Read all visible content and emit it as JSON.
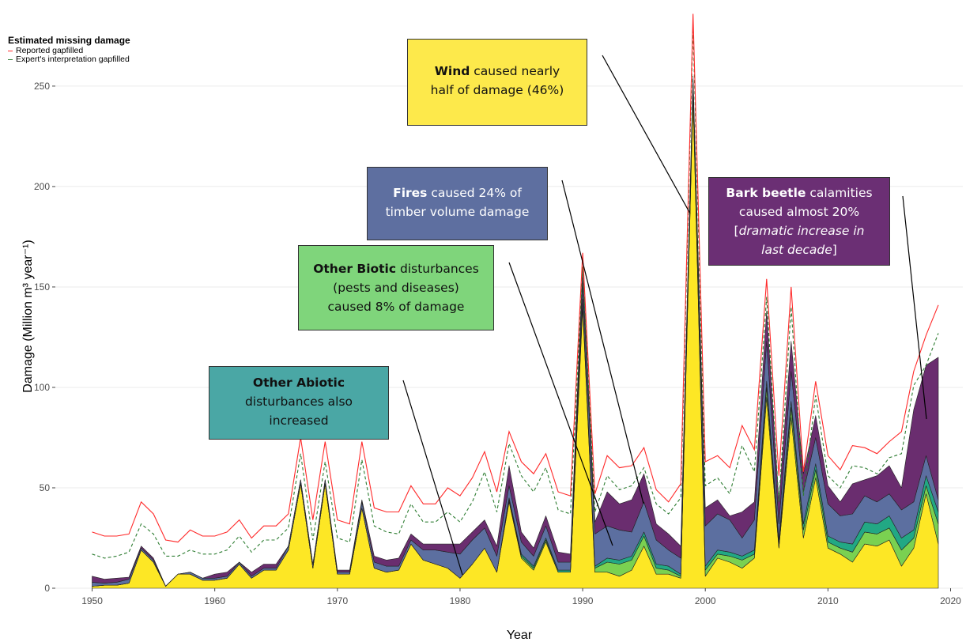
{
  "legend": {
    "title": "Estimated missing damage",
    "items": [
      {
        "label": "Reported gapfilled",
        "color": "#ff2a2a",
        "style": "solid"
      },
      {
        "label": "Expert's interpretation gapfilled",
        "color": "#2e7d32",
        "style": "dashed"
      }
    ]
  },
  "callouts": {
    "wind": {
      "bold": "Wind",
      "line1": " caused nearly",
      "line2": "half of damage (46%)",
      "bg": "#fde94b"
    },
    "fires": {
      "bold": "Fires",
      "line1": " caused 24% of",
      "line2": "timber volume damage",
      "bg": "#5e6fa0"
    },
    "bark": {
      "bold": "Bark beetle",
      "line1": " calamities",
      "line2": "caused almost 20%",
      "line3a": "[",
      "line3b": "dramatic increase in",
      "line4a": "last decade",
      "line4b": "]",
      "bg": "#6b2f74"
    },
    "biotic": {
      "bold": "Other Biotic",
      "line1": " disturbances",
      "line2": "(pests and diseases)",
      "line3": "caused 8% of damage",
      "bg": "#7fd57b"
    },
    "abiotic": {
      "bold": "Other Abiotic",
      "line2": "disturbances also",
      "line3": "increased",
      "bg": "#4aa7a5"
    }
  },
  "chart_data": {
    "type": "area",
    "xlabel": "Year",
    "ylabel": "Damage (Million m³ year⁻¹)",
    "xlim": [
      1947,
      2021
    ],
    "ylim": [
      0,
      285
    ],
    "xticks": [
      1950,
      1960,
      1970,
      1980,
      1990,
      2000,
      2010,
      2020
    ],
    "yticks": [
      0,
      50,
      100,
      150,
      200,
      250
    ],
    "grid": true,
    "stacked": true,
    "x": [
      1950,
      1951,
      1952,
      1953,
      1954,
      1955,
      1956,
      1957,
      1958,
      1959,
      1960,
      1961,
      1962,
      1963,
      1964,
      1965,
      1966,
      1967,
      1968,
      1969,
      1970,
      1971,
      1972,
      1973,
      1974,
      1975,
      1976,
      1977,
      1978,
      1979,
      1980,
      1981,
      1982,
      1983,
      1984,
      1985,
      1986,
      1987,
      1988,
      1989,
      1990,
      1991,
      1992,
      1993,
      1994,
      1995,
      1996,
      1997,
      1998,
      1999,
      2000,
      2001,
      2002,
      2003,
      2004,
      2005,
      2006,
      2007,
      2008,
      2009,
      2010,
      2011,
      2012,
      2013,
      2014,
      2015,
      2016,
      2017,
      2018,
      2019
    ],
    "series": [
      {
        "color": "#fde725",
        "values": [
          1,
          1.5,
          1.5,
          2.5,
          19,
          13,
          1,
          7,
          7,
          4,
          4,
          5,
          12,
          5,
          9,
          9,
          19,
          52,
          10,
          52,
          7,
          7,
          40,
          10,
          8,
          9,
          22,
          14,
          12,
          10,
          5,
          12,
          20,
          8,
          43,
          15,
          9,
          23,
          8,
          8,
          140,
          8,
          8,
          6,
          9,
          21,
          7,
          7,
          5,
          245,
          6,
          15,
          13,
          10,
          15,
          95,
          20,
          85,
          25,
          55,
          20,
          17,
          13,
          22,
          21,
          24,
          11,
          20,
          47,
          22
        ]
      },
      {
        "color": "#7ad151",
        "values": [
          0,
          0,
          0,
          0,
          0,
          0,
          0,
          0,
          0,
          0,
          0,
          0,
          0,
          0,
          0,
          0,
          0,
          0,
          0,
          0,
          0,
          0,
          0,
          0,
          0,
          0,
          0,
          0,
          0,
          0,
          0,
          0,
          0,
          0,
          1,
          1,
          1,
          1,
          0,
          0,
          2,
          2,
          5,
          6,
          5,
          5,
          3,
          2,
          1,
          2,
          3,
          2,
          3,
          4,
          2,
          5,
          2,
          5,
          4,
          4,
          3,
          3,
          5,
          6,
          6,
          6,
          8,
          5,
          4,
          10
        ]
      },
      {
        "color": "#22a884",
        "values": [
          0,
          0,
          0,
          0,
          0,
          0,
          0,
          0,
          0,
          0,
          0,
          0,
          0,
          0,
          0,
          0,
          0,
          0,
          0,
          0,
          0,
          0,
          0,
          0,
          0,
          0,
          0,
          0,
          0,
          0,
          0,
          0,
          0,
          0,
          1,
          1,
          1,
          1,
          1,
          1,
          2,
          1,
          2,
          2,
          2,
          2,
          2,
          2,
          1,
          2,
          2,
          2,
          2,
          2,
          2,
          3,
          2,
          3,
          3,
          3,
          3,
          3,
          4,
          5,
          5,
          6,
          6,
          4,
          5,
          6
        ]
      },
      {
        "color": "#5c6fa0",
        "values": [
          2,
          1,
          1.5,
          2,
          1,
          1,
          0,
          0,
          1,
          1,
          1,
          1,
          1,
          1,
          1,
          1,
          2,
          2,
          2,
          2,
          1,
          1,
          3,
          3,
          3,
          2,
          2,
          5,
          7,
          8,
          12,
          12,
          10,
          8,
          6,
          6,
          5,
          6,
          4,
          4,
          8,
          16,
          16,
          15,
          12,
          15,
          12,
          8,
          8,
          5,
          20,
          18,
          16,
          9,
          15,
          20,
          8,
          15,
          16,
          13,
          16,
          13,
          15,
          13,
          11,
          11,
          14,
          14,
          10,
          6
        ]
      },
      {
        "color": "#6a2d6f",
        "values": [
          3,
          2,
          2,
          1,
          1,
          1,
          0,
          0,
          0,
          0,
          2,
          2,
          0,
          2,
          2,
          2,
          0,
          0,
          0,
          0,
          1,
          1,
          1,
          3,
          3,
          4,
          3,
          3,
          3,
          4,
          5,
          4,
          4,
          5,
          10,
          5,
          4,
          5,
          5,
          4,
          8,
          6,
          17,
          13,
          16,
          14,
          8,
          8,
          6,
          1,
          9,
          7,
          2,
          13,
          9,
          15,
          11,
          15,
          9,
          11,
          9,
          7,
          15,
          8,
          13,
          14,
          11,
          46,
          45,
          71
        ]
      }
    ],
    "reported_gapfilled": [
      28,
      26,
      26,
      27,
      43,
      37,
      24,
      23,
      29,
      26,
      26,
      28,
      34,
      25,
      31,
      31,
      37,
      75,
      34,
      73,
      34,
      32,
      73,
      40,
      38,
      38,
      51,
      42,
      42,
      50,
      46,
      55,
      68,
      48,
      78,
      63,
      57,
      67,
      48,
      46,
      167,
      47,
      66,
      60,
      61,
      70,
      49,
      43,
      52,
      286,
      63,
      66,
      60,
      81,
      69,
      154,
      56,
      150,
      58,
      103,
      66,
      59,
      71,
      70,
      67,
      73,
      78,
      108,
      126,
      141
    ],
    "expert_gapfilled": [
      17,
      15,
      16,
      18,
      32,
      27,
      16,
      16,
      19,
      17,
      17,
      19,
      26,
      18,
      24,
      24,
      30,
      67,
      24,
      63,
      25,
      23,
      64,
      31,
      28,
      27,
      42,
      33,
      33,
      38,
      33,
      43,
      58,
      38,
      72,
      56,
      48,
      60,
      39,
      37,
      160,
      38,
      56,
      49,
      51,
      60,
      42,
      37,
      45,
      280,
      51,
      55,
      47,
      71,
      58,
      145,
      43,
      140,
      46,
      96,
      56,
      50,
      61,
      60,
      57,
      65,
      67,
      101,
      111,
      127
    ]
  }
}
